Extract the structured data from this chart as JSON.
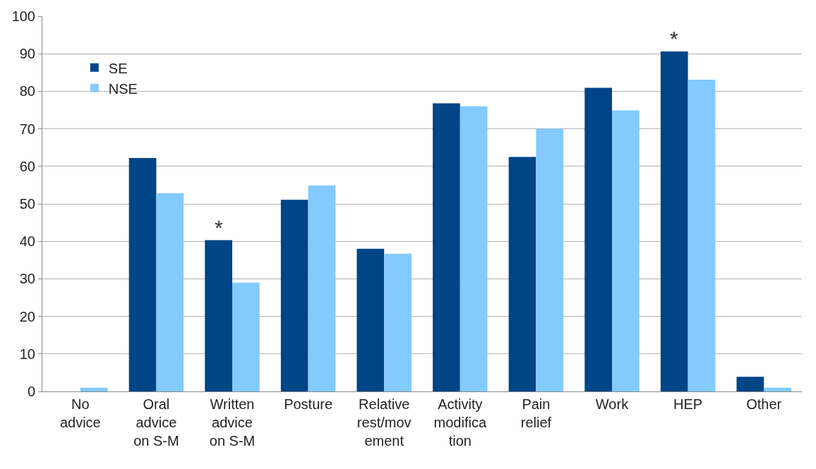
{
  "chart_data": {
    "type": "bar",
    "categories": [
      "No advice",
      "Oral advice on S-M",
      "Written advice on S-M",
      "Posture",
      "Relative rest/movement",
      "Activity modification",
      "Pain relief",
      "Work",
      "HEP",
      "Other"
    ],
    "series": [
      {
        "name": "SE",
        "color": "#004586",
        "values": [
          0,
          62.2,
          40.3,
          51.1,
          38,
          76.8,
          62.5,
          80.9,
          90.6,
          3.9
        ]
      },
      {
        "name": "NSE",
        "color": "#83caff",
        "values": [
          1,
          52.8,
          29,
          54.9,
          36.7,
          76,
          70,
          74.9,
          83.1,
          1
        ]
      }
    ],
    "ylim": [
      0,
      100
    ],
    "yticks": [
      0,
      10,
      20,
      30,
      40,
      50,
      60,
      70,
      80,
      90,
      100
    ],
    "grid": "y",
    "legend": "top left",
    "annotations": [
      {
        "text": "*",
        "x": "Written advice on S-M",
        "y": 40.3
      },
      {
        "text": "*",
        "x": "HEP",
        "y": 90.6
      }
    ]
  }
}
